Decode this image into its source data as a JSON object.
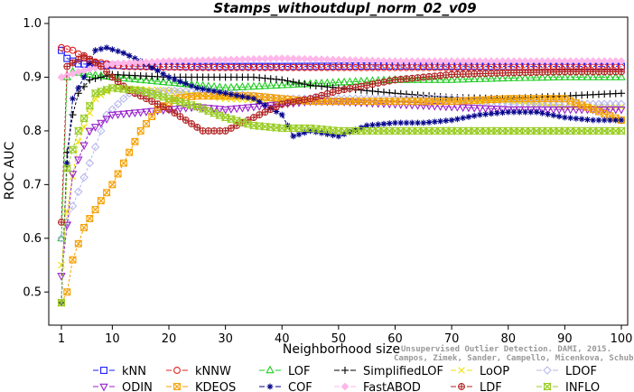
{
  "chart_data": {
    "type": "line",
    "title": "Stamps_withoutdupl_norm_02_v09",
    "xlabel": "Neighborhood size",
    "ylabel": "ROC AUC",
    "xlim": [
      1,
      100
    ],
    "ylim": [
      0.45,
      1.0
    ],
    "xticks": [
      1,
      10,
      20,
      30,
      40,
      50,
      60,
      70,
      80,
      90,
      100
    ],
    "yticks": [
      0.5,
      0.6,
      0.7,
      0.8,
      0.9,
      1.0
    ],
    "ytick_labels": [
      "0.5",
      "0.6",
      "0.7",
      "0.8",
      "0.9",
      "1.0"
    ],
    "legend_position": "bottom",
    "series": [
      {
        "name": "kNN",
        "color": "#1a1aff",
        "marker": "square",
        "points": [
          [
            1,
            0.95
          ],
          [
            2,
            0.935
          ],
          [
            4,
            0.925
          ],
          [
            10,
            0.922
          ],
          [
            20,
            0.92
          ],
          [
            40,
            0.92
          ],
          [
            60,
            0.921
          ],
          [
            80,
            0.92
          ],
          [
            100,
            0.92
          ]
        ]
      },
      {
        "name": "kNNW",
        "color": "#e02020",
        "marker": "circle",
        "points": [
          [
            1,
            0.955
          ],
          [
            3,
            0.95
          ],
          [
            6,
            0.93
          ],
          [
            12,
            0.92
          ],
          [
            25,
            0.918
          ],
          [
            50,
            0.918
          ],
          [
            75,
            0.918
          ],
          [
            100,
            0.918
          ]
        ]
      },
      {
        "name": "LOF",
        "color": "#22cc22",
        "marker": "triangle-up",
        "points": [
          [
            1,
            0.6
          ],
          [
            2,
            0.9
          ],
          [
            3,
            0.91
          ],
          [
            6,
            0.905
          ],
          [
            10,
            0.9
          ],
          [
            20,
            0.89
          ],
          [
            30,
            0.88
          ],
          [
            40,
            0.885
          ],
          [
            50,
            0.89
          ],
          [
            60,
            0.895
          ],
          [
            70,
            0.895
          ],
          [
            80,
            0.898
          ],
          [
            90,
            0.9
          ],
          [
            100,
            0.9
          ]
        ]
      },
      {
        "name": "SimplifiedLOF",
        "color": "#000000",
        "marker": "plus",
        "points": [
          [
            1,
            0.48
          ],
          [
            2,
            0.76
          ],
          [
            3,
            0.83
          ],
          [
            4,
            0.87
          ],
          [
            6,
            0.895
          ],
          [
            10,
            0.905
          ],
          [
            20,
            0.9
          ],
          [
            30,
            0.9
          ],
          [
            35,
            0.9
          ],
          [
            40,
            0.895
          ],
          [
            45,
            0.885
          ],
          [
            50,
            0.88
          ],
          [
            60,
            0.87
          ],
          [
            70,
            0.862
          ],
          [
            80,
            0.86
          ],
          [
            90,
            0.865
          ],
          [
            100,
            0.87
          ]
        ]
      },
      {
        "name": "LoOP",
        "color": "#f0e000",
        "marker": "x",
        "points": [
          [
            1,
            0.55
          ],
          [
            2,
            0.65
          ],
          [
            4,
            0.78
          ],
          [
            7,
            0.86
          ],
          [
            10,
            0.88
          ],
          [
            20,
            0.875
          ],
          [
            30,
            0.86
          ],
          [
            40,
            0.855
          ],
          [
            50,
            0.855
          ],
          [
            60,
            0.855
          ],
          [
            70,
            0.855
          ],
          [
            80,
            0.855
          ],
          [
            90,
            0.845
          ],
          [
            100,
            0.845
          ]
        ]
      },
      {
        "name": "LDOF",
        "color": "#b8b8ee",
        "marker": "diamond",
        "points": [
          [
            1,
            0.6
          ],
          [
            3,
            0.66
          ],
          [
            6,
            0.74
          ],
          [
            9,
            0.83
          ],
          [
            13,
            0.87
          ],
          [
            20,
            0.875
          ],
          [
            30,
            0.87
          ],
          [
            40,
            0.86
          ],
          [
            50,
            0.86
          ],
          [
            60,
            0.86
          ],
          [
            70,
            0.86
          ],
          [
            80,
            0.85
          ],
          [
            90,
            0.85
          ],
          [
            100,
            0.85
          ]
        ]
      },
      {
        "name": "ODIN",
        "color": "#9922cc",
        "marker": "triangle-down",
        "points": [
          [
            1,
            0.53
          ],
          [
            3,
            0.72
          ],
          [
            6,
            0.8
          ],
          [
            10,
            0.83
          ],
          [
            15,
            0.835
          ],
          [
            20,
            0.84
          ],
          [
            25,
            0.845
          ],
          [
            30,
            0.84
          ],
          [
            35,
            0.845
          ],
          [
            40,
            0.85
          ],
          [
            45,
            0.855
          ],
          [
            50,
            0.855
          ],
          [
            60,
            0.85
          ],
          [
            70,
            0.845
          ],
          [
            80,
            0.84
          ],
          [
            90,
            0.84
          ],
          [
            100,
            0.84
          ]
        ]
      },
      {
        "name": "KDEOS",
        "color": "#f5a000",
        "marker": "square-x",
        "points": [
          [
            1,
            0.48
          ],
          [
            2,
            0.5
          ],
          [
            3,
            0.56
          ],
          [
            5,
            0.62
          ],
          [
            8,
            0.67
          ],
          [
            10,
            0.7
          ],
          [
            13,
            0.76
          ],
          [
            15,
            0.8
          ],
          [
            18,
            0.84
          ],
          [
            21,
            0.86
          ],
          [
            25,
            0.865
          ],
          [
            30,
            0.865
          ],
          [
            35,
            0.865
          ],
          [
            40,
            0.86
          ],
          [
            45,
            0.855
          ],
          [
            50,
            0.855
          ],
          [
            60,
            0.855
          ],
          [
            70,
            0.855
          ],
          [
            80,
            0.86
          ],
          [
            90,
            0.86
          ],
          [
            100,
            0.82
          ]
        ]
      },
      {
        "name": "COF",
        "color": "#00008b",
        "marker": "asterisk",
        "points": [
          [
            1,
            0.48
          ],
          [
            2,
            0.74
          ],
          [
            3,
            0.86
          ],
          [
            5,
            0.9
          ],
          [
            7,
            0.95
          ],
          [
            9,
            0.955
          ],
          [
            12,
            0.945
          ],
          [
            15,
            0.93
          ],
          [
            20,
            0.9
          ],
          [
            25,
            0.88
          ],
          [
            30,
            0.87
          ],
          [
            35,
            0.86
          ],
          [
            40,
            0.83
          ],
          [
            42,
            0.79
          ],
          [
            45,
            0.8
          ],
          [
            50,
            0.79
          ],
          [
            55,
            0.81
          ],
          [
            60,
            0.815
          ],
          [
            65,
            0.815
          ],
          [
            70,
            0.82
          ],
          [
            75,
            0.83
          ],
          [
            80,
            0.835
          ],
          [
            85,
            0.835
          ],
          [
            90,
            0.825
          ],
          [
            95,
            0.82
          ],
          [
            100,
            0.82
          ]
        ]
      },
      {
        "name": "FastABOD",
        "color": "#ffb6e8",
        "marker": "diamond-filled",
        "points": [
          [
            1,
            0.9
          ],
          [
            4,
            0.91
          ],
          [
            10,
            0.925
          ],
          [
            20,
            0.93
          ],
          [
            40,
            0.935
          ],
          [
            60,
            0.93
          ],
          [
            80,
            0.93
          ],
          [
            100,
            0.93
          ]
        ]
      },
      {
        "name": "LDF",
        "color": "#b22222",
        "marker": "circle-plus",
        "points": [
          [
            1,
            0.63
          ],
          [
            2,
            0.92
          ],
          [
            5,
            0.94
          ],
          [
            8,
            0.92
          ],
          [
            10,
            0.9
          ],
          [
            13,
            0.875
          ],
          [
            16,
            0.86
          ],
          [
            20,
            0.84
          ],
          [
            23,
            0.82
          ],
          [
            26,
            0.8
          ],
          [
            30,
            0.8
          ],
          [
            33,
            0.815
          ],
          [
            37,
            0.835
          ],
          [
            40,
            0.85
          ],
          [
            45,
            0.86
          ],
          [
            50,
            0.875
          ],
          [
            55,
            0.885
          ],
          [
            60,
            0.895
          ],
          [
            65,
            0.9
          ],
          [
            70,
            0.905
          ],
          [
            80,
            0.908
          ],
          [
            90,
            0.91
          ],
          [
            100,
            0.91
          ]
        ]
      },
      {
        "name": "INFLO",
        "color": "#99cc22",
        "marker": "hourglass",
        "points": [
          [
            1,
            0.48
          ],
          [
            2,
            0.73
          ],
          [
            4,
            0.8
          ],
          [
            7,
            0.87
          ],
          [
            10,
            0.88
          ],
          [
            15,
            0.875
          ],
          [
            20,
            0.86
          ],
          [
            25,
            0.845
          ],
          [
            30,
            0.825
          ],
          [
            35,
            0.81
          ],
          [
            40,
            0.805
          ],
          [
            45,
            0.805
          ],
          [
            50,
            0.8
          ],
          [
            60,
            0.8
          ],
          [
            70,
            0.8
          ],
          [
            80,
            0.8
          ],
          [
            90,
            0.8
          ],
          [
            100,
            0.8
          ]
        ]
      }
    ]
  },
  "watermark": {
    "line1": "Unsupervised Outlier Detection. DAMI, 2015.",
    "line2": "Campos, Zimek, Sander, Campello, Micenkova, Schubert, Assent, Houle"
  }
}
